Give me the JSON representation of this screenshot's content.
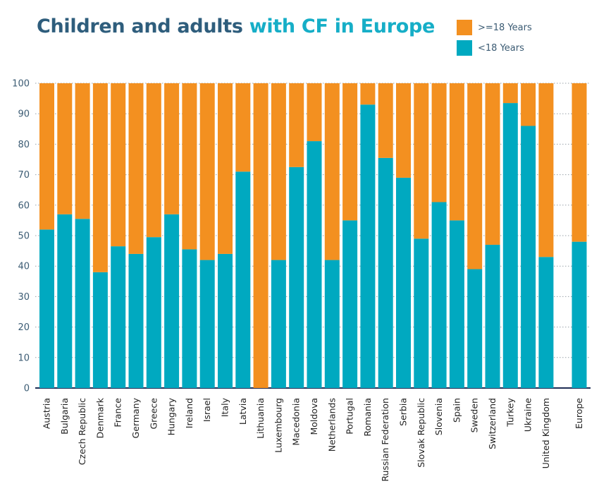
{
  "chart_data": {
    "type": "bar",
    "stacked": true,
    "title_part1": "Children and adults",
    "title_part2": "with CF in Europe",
    "xlabel": "",
    "ylabel": "",
    "ylim": [
      0,
      100
    ],
    "yticks": [
      0,
      10,
      20,
      30,
      40,
      50,
      60,
      70,
      80,
      90,
      100
    ],
    "grid": true,
    "legend_position": "top-right",
    "categories": [
      "Austria",
      "Bulgaria",
      "Czech Republic",
      "Denmark",
      "France",
      "Germany",
      "Greece",
      "Hungary",
      "Ireland",
      "Israel",
      "Italy",
      "Latvia",
      "Lithuania",
      "Luxembourg",
      "Macedonia",
      "Moldova",
      "Netherlands",
      "Portugal",
      "Romania",
      "Russian Federation",
      "Serbia",
      "Slovak Republic",
      "Slovenia",
      "Spain",
      "Sweden",
      "Switzerland",
      "Turkey",
      "Ukraine",
      "United Kingdom",
      "Europe"
    ],
    "series": [
      {
        "name": "<18 Years",
        "color": "#00a9c0",
        "values": [
          52,
          57,
          55.5,
          38,
          46.5,
          44,
          49.5,
          57,
          45.5,
          42,
          44,
          71,
          0,
          42,
          72.5,
          81,
          42,
          55,
          93,
          75.5,
          69,
          49,
          61,
          55,
          39,
          47,
          93.5,
          86,
          43,
          48
        ]
      },
      {
        "name": ">=18 Years",
        "color": "#f39020",
        "values": [
          48,
          43,
          44.5,
          62,
          53.5,
          56,
          50.5,
          43,
          54.5,
          58,
          56,
          29,
          100,
          58,
          27.5,
          19,
          58,
          45,
          7,
          24.5,
          31,
          51,
          39,
          45,
          61,
          53,
          6.5,
          14,
          57,
          52
        ]
      }
    ],
    "legend_order": [
      1,
      0
    ]
  }
}
